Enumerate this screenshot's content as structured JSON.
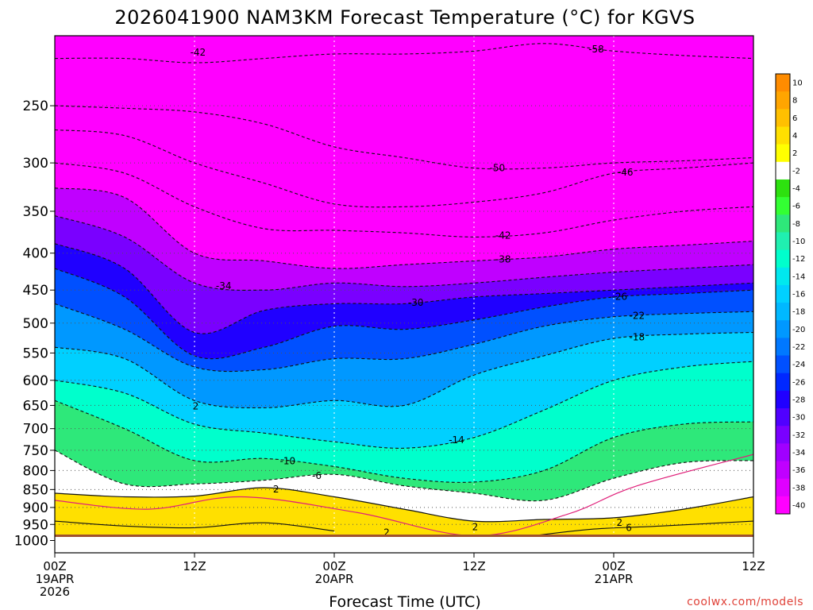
{
  "chart_data": {
    "type": "heatmap",
    "title": "2026041900 NAM3KM Forecast Temperature (°C) for KGVS",
    "xlabel": "Forecast Time (UTC)",
    "credit": "coolwx.com/models",
    "y_axis": {
      "quantity": "pressure (hPa)",
      "direction": "decreasing upward",
      "ticks": [
        "250",
        "300",
        "350",
        "400",
        "450",
        "500",
        "550",
        "600",
        "650",
        "700",
        "750",
        "800",
        "850",
        "900",
        "950",
        "1000"
      ],
      "range": [
        200,
        1040
      ]
    },
    "x_axis": {
      "range_hours": [
        0,
        60
      ],
      "ticks": [
        {
          "hour": 0,
          "lines": [
            "00Z",
            "19APR",
            "2026"
          ]
        },
        {
          "hour": 12,
          "lines": [
            "12Z"
          ]
        },
        {
          "hour": 24,
          "lines": [
            "00Z",
            "20APR"
          ]
        },
        {
          "hour": 36,
          "lines": [
            "12Z"
          ]
        },
        {
          "hour": 48,
          "lines": [
            "00Z",
            "21APR"
          ]
        },
        {
          "hour": 60,
          "lines": [
            "12Z"
          ]
        }
      ]
    },
    "grid": true,
    "colorbar": {
      "position": "right",
      "levels": [
        "10",
        "8",
        "6",
        "4",
        "2",
        "-2",
        "-4",
        "-6",
        "-8",
        "-10",
        "-12",
        "-14",
        "-16",
        "-18",
        "-20",
        "-22",
        "-24",
        "-26",
        "-28",
        "-30",
        "-32",
        "-34",
        "-36",
        "-38",
        "-40"
      ],
      "colors": [
        "#ff8c00",
        "#ffa500",
        "#ffc000",
        "#ffe000",
        "#ffff00",
        "#ffffff",
        "#2de10f",
        "#33ff33",
        "#2ee87a",
        "#20f0b0",
        "#00ffcc",
        "#00e8ee",
        "#00d0ff",
        "#00b8ff",
        "#0098ff",
        "#0078ff",
        "#0050ff",
        "#0028ff",
        "#2000ff",
        "#5000ff",
        "#7a00ff",
        "#a000ff",
        "#c000ff",
        "#e000ff",
        "#ff00ff"
      ]
    },
    "hours": [
      0,
      6,
      12,
      18,
      24,
      30,
      36,
      42,
      48,
      54,
      60
    ],
    "isotherms": [
      {
        "value": -58,
        "label": "-58",
        "label_hour": 46.5,
        "pressure": [
          215,
          215,
          218,
          215,
          212,
          212,
          210,
          205,
          210,
          213,
          215
        ]
      },
      {
        "value": -50,
        "label": "-50",
        "label_hour": 38,
        "pressure": [
          250,
          252,
          255,
          265,
          285,
          295,
          305,
          305,
          300,
          298,
          295
        ]
      },
      {
        "value": -46,
        "label": "-46",
        "label_hour": 49,
        "pressure": [
          270,
          275,
          300,
          320,
          342,
          345,
          340,
          330,
          310,
          305,
          300
        ]
      },
      {
        "value": -42,
        "label": "-42",
        "label_hour": 38.5,
        "pressure": [
          300,
          310,
          345,
          370,
          372,
          375,
          380,
          375,
          360,
          350,
          345
        ]
      },
      {
        "value": -38,
        "label": "-38",
        "label_hour": 38.5,
        "pressure": [
          325,
          335,
          400,
          410,
          420,
          415,
          410,
          405,
          395,
          390,
          385
        ]
      },
      {
        "value": -34,
        "label": "-34",
        "label_hour": 14.5,
        "pressure": [
          355,
          380,
          440,
          450,
          440,
          445,
          440,
          432,
          425,
          420,
          415
        ]
      },
      {
        "value": -30,
        "label": "-30",
        "label_hour": 31,
        "pressure": [
          388,
          420,
          515,
          480,
          470,
          470,
          460,
          455,
          450,
          445,
          440
        ]
      },
      {
        "value": -26,
        "label": "-26",
        "label_hour": 48.5,
        "pressure": [
          420,
          460,
          555,
          540,
          505,
          510,
          495,
          475,
          460,
          455,
          450
        ]
      },
      {
        "value": -22,
        "label": "-22",
        "label_hour": 50,
        "pressure": [
          470,
          510,
          575,
          580,
          560,
          560,
          535,
          505,
          490,
          485,
          482
        ]
      },
      {
        "value": -18,
        "label": "-18",
        "label_hour": 50,
        "pressure": [
          540,
          560,
          640,
          655,
          640,
          650,
          590,
          555,
          525,
          518,
          515
        ]
      },
      {
        "value": -14,
        "label": "-14",
        "label_hour": 34.5,
        "pressure": [
          600,
          625,
          690,
          710,
          730,
          745,
          720,
          660,
          600,
          575,
          565
        ]
      },
      {
        "value": -10,
        "label": "-10",
        "label_hour": 20,
        "pressure": [
          640,
          700,
          775,
          770,
          790,
          820,
          830,
          800,
          720,
          690,
          685
        ]
      },
      {
        "value": -6,
        "label": "-6",
        "label_hour": 22.5,
        "pressure": [
          750,
          835,
          835,
          825,
          810,
          840,
          860,
          880,
          820,
          780,
          775
        ]
      },
      {
        "value": 2,
        "label": "2",
        "label_hour": 19,
        "pressure": [
          860,
          870,
          868,
          845,
          870,
          905,
          940,
          935,
          930,
          905,
          870
        ]
      }
    ],
    "labels_lower": [
      {
        "text": "2",
        "hour": 12.1
      },
      {
        "text": "2",
        "hour": 28.5
      },
      {
        "text": "2",
        "hour": 48.5
      },
      {
        "text": "2",
        "hour": 36.1
      },
      {
        "text": "6",
        "hour": 49.3
      }
    ],
    "label_42_top": {
      "text": "-42",
      "hour": 12.3
    }
  }
}
